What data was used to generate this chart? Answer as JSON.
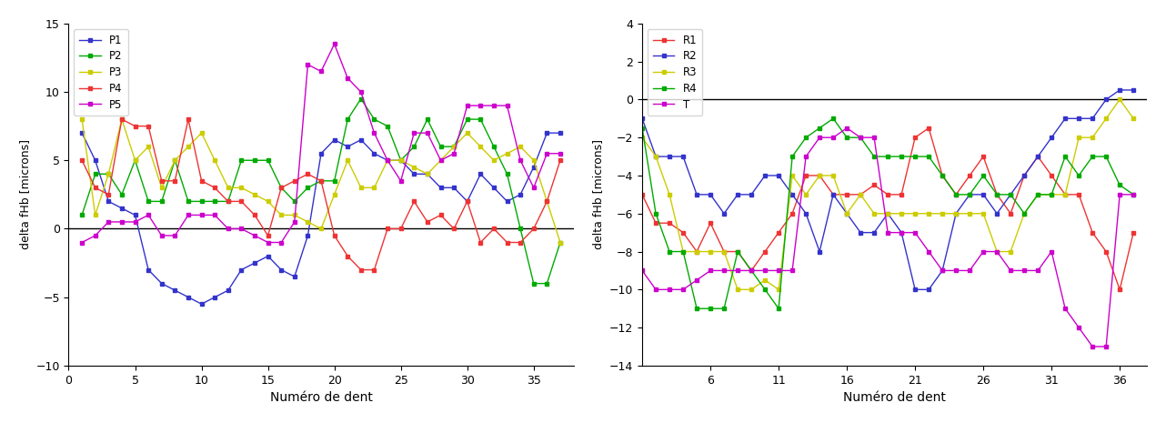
{
  "left": {
    "xlabel": "Numéro de dent",
    "ylabel": "delta fHb [microns]",
    "ylim": [
      -10,
      15
    ],
    "yticks": [
      -10,
      -5,
      0,
      5,
      10,
      15
    ],
    "xlim": [
      0,
      38
    ],
    "xticks": [
      0,
      5,
      10,
      15,
      20,
      25,
      30,
      35
    ],
    "series": {
      "P1": {
        "color": "#3333cc",
        "data_x": [
          1,
          2,
          3,
          4,
          5,
          6,
          7,
          8,
          9,
          10,
          11,
          12,
          13,
          14,
          15,
          16,
          17,
          18,
          19,
          20,
          21,
          22,
          23,
          24,
          25,
          26,
          27,
          28,
          29,
          30,
          31,
          32,
          33,
          34,
          35,
          36,
          37
        ],
        "data_y": [
          7,
          5,
          2,
          1.5,
          1,
          -3,
          -4,
          -4.5,
          -5,
          -5.5,
          -5,
          -4.5,
          -3,
          -2.5,
          -2,
          -3,
          -3.5,
          -0.5,
          5.5,
          6.5,
          6,
          6.5,
          5.5,
          5,
          5,
          4,
          4,
          3,
          3,
          2,
          4,
          3,
          2,
          2.5,
          4.5,
          7,
          7
        ]
      },
      "P2": {
        "color": "#00aa00",
        "data_x": [
          1,
          2,
          3,
          4,
          5,
          6,
          7,
          8,
          9,
          10,
          11,
          12,
          13,
          14,
          15,
          16,
          17,
          18,
          19,
          20,
          21,
          22,
          23,
          24,
          25,
          26,
          27,
          28,
          29,
          30,
          31,
          32,
          33,
          34,
          35,
          36,
          37
        ],
        "data_y": [
          1,
          4,
          4,
          2.5,
          5,
          2,
          2,
          5,
          2,
          2,
          2,
          2,
          5,
          5,
          5,
          3,
          2,
          3,
          3.5,
          3.5,
          8,
          9.5,
          8,
          7.5,
          5,
          6,
          8,
          6,
          6,
          8,
          8,
          6,
          4,
          0,
          -4,
          -4,
          -1
        ]
      },
      "P3": {
        "color": "#cccc00",
        "data_x": [
          1,
          2,
          3,
          4,
          5,
          6,
          7,
          8,
          9,
          10,
          11,
          12,
          13,
          14,
          15,
          16,
          17,
          18,
          19,
          20,
          21,
          22,
          23,
          24,
          25,
          26,
          27,
          28,
          29,
          30,
          31,
          32,
          33,
          34,
          35,
          36,
          37
        ],
        "data_y": [
          8,
          1,
          4,
          8,
          5,
          6,
          3,
          5,
          6,
          7,
          5,
          3,
          3,
          2.5,
          2,
          1,
          1,
          0.5,
          0,
          2.5,
          5,
          3,
          3,
          5,
          5,
          4.5,
          4,
          5,
          6,
          7,
          6,
          5,
          5.5,
          6,
          5,
          2,
          -1
        ]
      },
      "P4": {
        "color": "#ee3333",
        "data_x": [
          1,
          2,
          3,
          4,
          5,
          6,
          7,
          8,
          9,
          10,
          11,
          12,
          13,
          14,
          15,
          16,
          17,
          18,
          19,
          20,
          21,
          22,
          23,
          24,
          25,
          26,
          27,
          28,
          29,
          30,
          31,
          32,
          33,
          34,
          35,
          36,
          37
        ],
        "data_y": [
          5,
          3,
          2.5,
          8,
          7.5,
          7.5,
          3.5,
          3.5,
          8,
          3.5,
          3,
          2,
          2,
          1,
          -0.5,
          3,
          3.5,
          4,
          3.5,
          -0.5,
          -2,
          -3,
          -3,
          0,
          0,
          2,
          0.5,
          1,
          0,
          2,
          -1,
          0,
          -1,
          -1,
          0,
          2,
          5
        ]
      },
      "P5": {
        "color": "#cc00cc",
        "data_x": [
          1,
          2,
          3,
          4,
          5,
          6,
          7,
          8,
          9,
          10,
          11,
          12,
          13,
          14,
          15,
          16,
          17,
          18,
          19,
          20,
          21,
          22,
          23,
          24,
          25,
          26,
          27,
          28,
          29,
          30,
          31,
          32,
          33,
          34,
          35,
          36,
          37
        ],
        "data_y": [
          -1,
          -0.5,
          0.5,
          0.5,
          0.5,
          1,
          -0.5,
          -0.5,
          1,
          1,
          1,
          0,
          0,
          -0.5,
          -1,
          -1,
          0.5,
          12,
          11.5,
          13.5,
          11,
          10,
          7,
          5,
          3.5,
          7,
          7,
          5,
          5.5,
          9,
          9,
          9,
          9,
          5,
          3,
          5.5,
          5.5
        ]
      }
    }
  },
  "right": {
    "xlabel": "Numéro de dent",
    "ylabel": "delta fHb [microns]",
    "ylim": [
      -14,
      4
    ],
    "yticks": [
      -14,
      -12,
      -10,
      -8,
      -6,
      -4,
      -2,
      0,
      2,
      4
    ],
    "xlim": [
      1,
      38
    ],
    "xticks": [
      6,
      11,
      16,
      21,
      26,
      31,
      36
    ],
    "series": {
      "R1": {
        "color": "#ee3333",
        "data_x": [
          1,
          2,
          3,
          4,
          5,
          6,
          7,
          8,
          9,
          10,
          11,
          12,
          13,
          14,
          15,
          16,
          17,
          18,
          19,
          20,
          21,
          22,
          23,
          24,
          25,
          26,
          27,
          28,
          29,
          30,
          31,
          32,
          33,
          34,
          35,
          36,
          37
        ],
        "data_y": [
          -5,
          -6.5,
          -6.5,
          -7,
          -8,
          -6.5,
          -8,
          -8,
          -9,
          -8,
          -7,
          -6,
          -4,
          -4,
          -5,
          -5,
          -5,
          -4.5,
          -5,
          -5,
          -2,
          -1.5,
          -4,
          -5,
          -4,
          -3,
          -5,
          -6,
          -4,
          -3,
          -4,
          -5,
          -5,
          -7,
          -8,
          -10,
          -7
        ]
      },
      "R2": {
        "color": "#3333cc",
        "data_x": [
          1,
          2,
          3,
          4,
          5,
          6,
          7,
          8,
          9,
          10,
          11,
          12,
          13,
          14,
          15,
          16,
          17,
          18,
          19,
          20,
          21,
          22,
          23,
          24,
          25,
          26,
          27,
          28,
          29,
          30,
          31,
          32,
          33,
          34,
          35,
          36,
          37
        ],
        "data_y": [
          -1,
          -3,
          -3,
          -3,
          -5,
          -5,
          -6,
          -5,
          -5,
          -4,
          -4,
          -5,
          -6,
          -8,
          -5,
          -6,
          -7,
          -7,
          -6,
          -7,
          -10,
          -10,
          -9,
          -6,
          -5,
          -5,
          -6,
          -5,
          -4,
          -3,
          -2,
          -1,
          -1,
          -1,
          0,
          0.5,
          0.5
        ]
      },
      "R3": {
        "color": "#cccc00",
        "data_x": [
          1,
          2,
          3,
          4,
          5,
          6,
          7,
          8,
          9,
          10,
          11,
          12,
          13,
          14,
          15,
          16,
          17,
          18,
          19,
          20,
          21,
          22,
          23,
          24,
          25,
          26,
          27,
          28,
          29,
          30,
          31,
          32,
          33,
          34,
          35,
          36,
          37
        ],
        "data_y": [
          -2,
          -3,
          -5,
          -8,
          -8,
          -8,
          -8,
          -10,
          -10,
          -9.5,
          -10,
          -4,
          -5,
          -4,
          -4,
          -6,
          -5,
          -6,
          -6,
          -6,
          -6,
          -6,
          -6,
          -6,
          -6,
          -6,
          -8,
          -8,
          -6,
          -5,
          -5,
          -5,
          -2,
          -2,
          -1,
          0,
          -1
        ]
      },
      "R4": {
        "color": "#00aa00",
        "data_x": [
          1,
          2,
          3,
          4,
          5,
          6,
          7,
          8,
          9,
          10,
          11,
          12,
          13,
          14,
          15,
          16,
          17,
          18,
          19,
          20,
          21,
          22,
          23,
          24,
          25,
          26,
          27,
          28,
          29,
          30,
          31,
          32,
          33,
          34,
          35,
          36,
          37
        ],
        "data_y": [
          -1.5,
          -6,
          -8,
          -8,
          -11,
          -11,
          -11,
          -8,
          -9,
          -10,
          -11,
          -3,
          -2,
          -1.5,
          -1,
          -2,
          -2,
          -3,
          -3,
          -3,
          -3,
          -3,
          -4,
          -5,
          -5,
          -4,
          -5,
          -5,
          -6,
          -5,
          -5,
          -3,
          -4,
          -3,
          -3,
          -4.5,
          -5
        ]
      },
      "T": {
        "color": "#cc00cc",
        "data_x": [
          1,
          2,
          3,
          4,
          5,
          6,
          7,
          8,
          9,
          10,
          11,
          12,
          13,
          14,
          15,
          16,
          17,
          18,
          19,
          20,
          21,
          22,
          23,
          24,
          25,
          26,
          27,
          28,
          29,
          30,
          31,
          32,
          33,
          34,
          35,
          36,
          37
        ],
        "data_y": [
          -9,
          -10,
          -10,
          -10,
          -9.5,
          -9,
          -9,
          -9,
          -9,
          -9,
          -9,
          -9,
          -3,
          -2,
          -2,
          -1.5,
          -2,
          -2,
          -7,
          -7,
          -7,
          -8,
          -9,
          -9,
          -9,
          -8,
          -8,
          -9,
          -9,
          -9,
          -8,
          -11,
          -12,
          -13,
          -13,
          -5,
          -5
        ]
      }
    }
  }
}
